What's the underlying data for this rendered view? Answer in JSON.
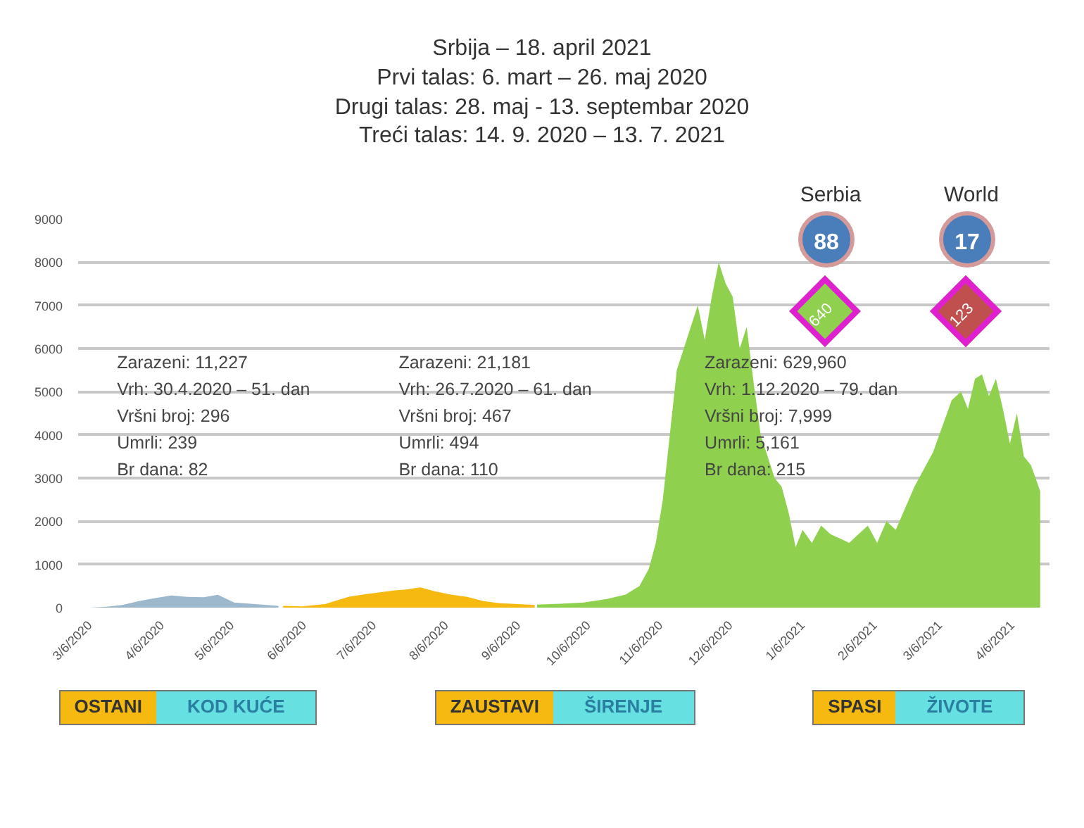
{
  "chart_data": {
    "type": "area",
    "title": "Srbija – 18. april 2021",
    "subtitle": "Prvi talas: 6. mart – 26. maj 2020\nDrugi talas: 28. maj - 13. septembar 2020\nTreći talas: 14. 9. 2020 – 13. 7. 2021",
    "xlim": [
      "2020-03-01",
      "2021-04-22"
    ],
    "xticks": [
      {
        "value": "2020-03-06",
        "label": "3/6/2020"
      },
      {
        "value": "2020-04-06",
        "label": "4/6/2020"
      },
      {
        "value": "2020-05-06",
        "label": "5/6/2020"
      },
      {
        "value": "2020-06-06",
        "label": "6/6/2020"
      },
      {
        "value": "2020-07-06",
        "label": "7/6/2020"
      },
      {
        "value": "2020-08-06",
        "label": "8/6/2020"
      },
      {
        "value": "2020-09-06",
        "label": "9/6/2020"
      },
      {
        "value": "2020-10-06",
        "label": "10/6/2020"
      },
      {
        "value": "2020-11-06",
        "label": "11/6/2020"
      },
      {
        "value": "2020-12-06",
        "label": "12/6/2020"
      },
      {
        "value": "2021-01-06",
        "label": "1/6/2021"
      },
      {
        "value": "2021-02-06",
        "label": "2/6/2021"
      },
      {
        "value": "2021-03-06",
        "label": "3/6/2021"
      },
      {
        "value": "2021-04-06",
        "label": "4/6/2021"
      }
    ],
    "ylim": [
      0,
      9000
    ],
    "yticks": [
      0,
      1000,
      2000,
      3000,
      4000,
      5000,
      6000,
      7000,
      8000,
      9000
    ],
    "grid": "y",
    "series": [
      {
        "color": "#9db8cc",
        "x": [
          "2020-03-06",
          "2020-03-13",
          "2020-03-20",
          "2020-03-27",
          "2020-04-03",
          "2020-04-10",
          "2020-04-17",
          "2020-04-24",
          "2020-04-30",
          "2020-05-07",
          "2020-05-14",
          "2020-05-21",
          "2020-05-26"
        ],
        "values": [
          0,
          20,
          60,
          150,
          220,
          280,
          250,
          240,
          296,
          120,
          90,
          60,
          40
        ]
      },
      {
        "color": "#f5b90f",
        "x": [
          "2020-05-28",
          "2020-06-05",
          "2020-06-15",
          "2020-06-25",
          "2020-07-01",
          "2020-07-08",
          "2020-07-15",
          "2020-07-20",
          "2020-07-26",
          "2020-08-01",
          "2020-08-08",
          "2020-08-15",
          "2020-08-22",
          "2020-08-29",
          "2020-09-06",
          "2020-09-13"
        ],
        "values": [
          40,
          30,
          80,
          250,
          300,
          350,
          400,
          420,
          467,
          380,
          300,
          250,
          150,
          100,
          80,
          60
        ]
      },
      {
        "color": "#8fd14f",
        "x": [
          "2020-09-14",
          "2020-09-24",
          "2020-10-04",
          "2020-10-14",
          "2020-10-22",
          "2020-10-28",
          "2020-11-01",
          "2020-11-04",
          "2020-11-07",
          "2020-11-10",
          "2020-11-13",
          "2020-11-16",
          "2020-11-19",
          "2020-11-22",
          "2020-11-25",
          "2020-11-28",
          "2020-12-01",
          "2020-12-04",
          "2020-12-07",
          "2020-12-10",
          "2020-12-13",
          "2020-12-16",
          "2020-12-19",
          "2020-12-22",
          "2020-12-25",
          "2020-12-28",
          "2020-12-31",
          "2021-01-03",
          "2021-01-06",
          "2021-01-10",
          "2021-01-14",
          "2021-01-18",
          "2021-01-22",
          "2021-01-26",
          "2021-01-30",
          "2021-02-03",
          "2021-02-07",
          "2021-02-11",
          "2021-02-15",
          "2021-02-19",
          "2021-02-23",
          "2021-02-27",
          "2021-03-03",
          "2021-03-07",
          "2021-03-11",
          "2021-03-15",
          "2021-03-18",
          "2021-03-21",
          "2021-03-24",
          "2021-03-27",
          "2021-03-30",
          "2021-04-02",
          "2021-04-05",
          "2021-04-08",
          "2021-04-11",
          "2021-04-14",
          "2021-04-18"
        ],
        "values": [
          70,
          90,
          120,
          200,
          300,
          500,
          900,
          1500,
          2500,
          4000,
          5500,
          6000,
          6500,
          7000,
          6200,
          7200,
          7999,
          7500,
          7200,
          6000,
          6500,
          5200,
          4000,
          3500,
          3000,
          2800,
          2200,
          1400,
          1800,
          1500,
          1900,
          1700,
          1600,
          1500,
          1700,
          1900,
          1500,
          2000,
          1800,
          2300,
          2800,
          3200,
          3600,
          4200,
          4800,
          5000,
          4600,
          5300,
          5400,
          4900,
          5300,
          4600,
          3800,
          4500,
          3500,
          3300,
          2700
        ]
      }
    ],
    "annotations": [
      "Zarazeni: 11,227\nVrh: 30.4.2020 – 51. dan\nVršni broj: 296\nUmrli: 239\nBr dana: 82",
      "Zarazeni: 21,181\nVrh: 26.7.2020 – 61. dan\nVršni broj: 467\nUmrli: 494\nBr dana: 110",
      "Zarazeni: 629,960\nVrh: 1.12.2020 – 79. dan\nVršni broj: 7,999\nUmrli: 5,161\nBr dana: 215",
      "Serbia",
      "88",
      "640",
      "World",
      "17",
      "123",
      "OSTANI",
      "KOD KUĆE",
      "ZAUSTAVI",
      "ŠIRENJE",
      "SPASI",
      "ŽIVOTE"
    ]
  }
}
